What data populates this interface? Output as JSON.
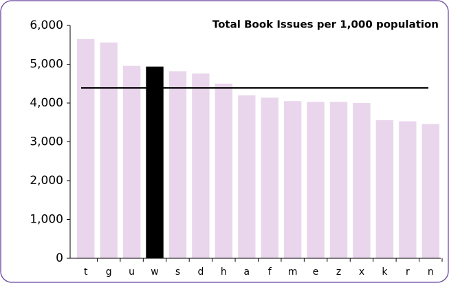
{
  "chart_data": {
    "type": "bar",
    "title": "Total Book Issues per 1,000 population",
    "categories": [
      "t",
      "g",
      "u",
      "w",
      "s",
      "d",
      "h",
      "a",
      "f",
      "m",
      "e",
      "z",
      "x",
      "k",
      "r",
      "n"
    ],
    "values": [
      5650,
      5560,
      4960,
      4940,
      4820,
      4760,
      4500,
      4200,
      4140,
      4050,
      4030,
      4030,
      4000,
      3560,
      3530,
      3460
    ],
    "colors": [
      "#ead6ec",
      "#ead6ec",
      "#ead6ec",
      "#000000",
      "#ead6ec",
      "#ead6ec",
      "#ead6ec",
      "#ead6ec",
      "#ead6ec",
      "#ead6ec",
      "#ead6ec",
      "#ead6ec",
      "#ead6ec",
      "#ead6ec",
      "#ead6ec",
      "#ead6ec"
    ],
    "reference_line": 4390,
    "reference_color": "#000000",
    "ylim": [
      0,
      6000
    ],
    "yticks": [
      0,
      {
        "value": 1000,
        "label": "1,000"
      },
      {
        "value": 2000,
        "label": "2,000"
      },
      {
        "value": 3000,
        "label": "3,000"
      },
      {
        "value": 4000,
        "label": "4,000"
      },
      {
        "value": 5000,
        "label": "5,000"
      },
      {
        "value": 6000,
        "label": "6,000"
      }
    ],
    "grid": false
  }
}
